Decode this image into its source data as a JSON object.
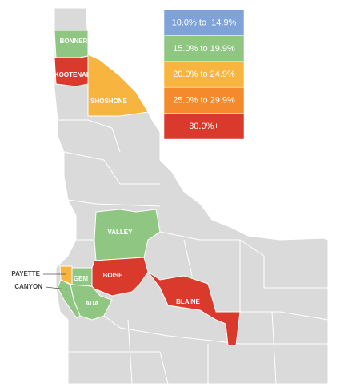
{
  "legend": [
    {
      "label": "10.0% to  14.9%",
      "color": "#7fa3d8"
    },
    {
      "label": "15.0% to 19.9%",
      "color": "#8ec682"
    },
    {
      "label": "20.0% to 24.9%",
      "color": "#f7b540"
    },
    {
      "label": "25.0% to 29.9%",
      "color": "#f48a2c"
    },
    {
      "label": "30.0%+",
      "color": "#d93a2c"
    }
  ],
  "counties": [
    {
      "name": "BONNER",
      "color": "#8ec682"
    },
    {
      "name": "KOOTENAI",
      "color": "#d93a2c"
    },
    {
      "name": "SHOSHONE",
      "color": "#f7b540"
    },
    {
      "name": "VALLEY",
      "color": "#8ec682"
    },
    {
      "name": "BOISE",
      "color": "#d93a2c"
    },
    {
      "name": "BLAINE",
      "color": "#d93a2c"
    },
    {
      "name": "GEM",
      "color": "#8ec682"
    },
    {
      "name": "PAYETTE",
      "color": "#f7b540"
    },
    {
      "name": "ADA",
      "color": "#8ec682"
    },
    {
      "name": "CANYON",
      "color": "#8ec682"
    }
  ]
}
